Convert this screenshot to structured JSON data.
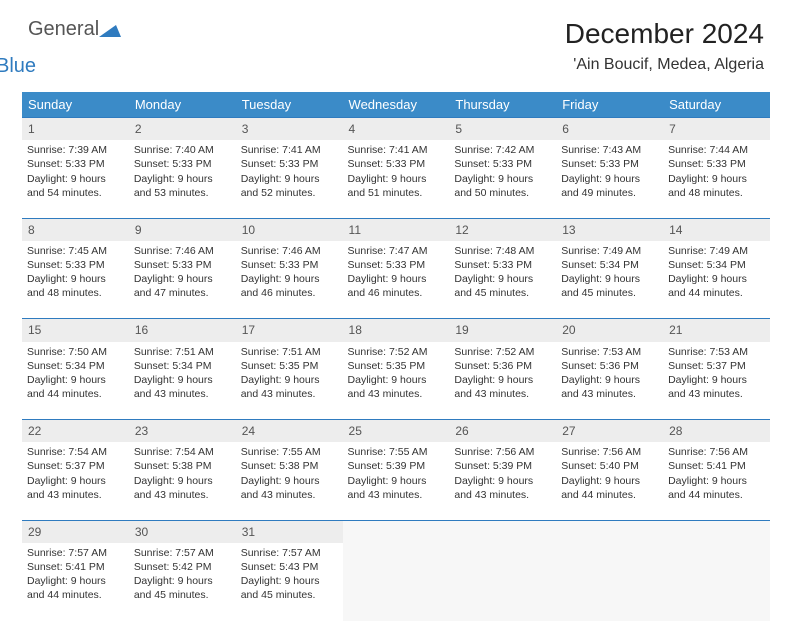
{
  "brand": {
    "part1": "General",
    "part2": "Blue"
  },
  "title": "December 2024",
  "location": "'Ain Boucif, Medea, Algeria",
  "colors": {
    "header_bg": "#3b8bc8",
    "header_text": "#ffffff",
    "daynum_bg": "#ededed",
    "daynum_border": "#2f7bbf",
    "text": "#333333",
    "brand_blue": "#2f7bbf",
    "background": "#ffffff"
  },
  "fonts": {
    "title_size": 28,
    "location_size": 16,
    "header_size": 13,
    "cell_size": 10.5
  },
  "weekdays": [
    "Sunday",
    "Monday",
    "Tuesday",
    "Wednesday",
    "Thursday",
    "Friday",
    "Saturday"
  ],
  "weeks": [
    {
      "nums": [
        "1",
        "2",
        "3",
        "4",
        "5",
        "6",
        "7"
      ],
      "cells": [
        {
          "sunrise": "Sunrise: 7:39 AM",
          "sunset": "Sunset: 5:33 PM",
          "daylight": "Daylight: 9 hours and 54 minutes."
        },
        {
          "sunrise": "Sunrise: 7:40 AM",
          "sunset": "Sunset: 5:33 PM",
          "daylight": "Daylight: 9 hours and 53 minutes."
        },
        {
          "sunrise": "Sunrise: 7:41 AM",
          "sunset": "Sunset: 5:33 PM",
          "daylight": "Daylight: 9 hours and 52 minutes."
        },
        {
          "sunrise": "Sunrise: 7:41 AM",
          "sunset": "Sunset: 5:33 PM",
          "daylight": "Daylight: 9 hours and 51 minutes."
        },
        {
          "sunrise": "Sunrise: 7:42 AM",
          "sunset": "Sunset: 5:33 PM",
          "daylight": "Daylight: 9 hours and 50 minutes."
        },
        {
          "sunrise": "Sunrise: 7:43 AM",
          "sunset": "Sunset: 5:33 PM",
          "daylight": "Daylight: 9 hours and 49 minutes."
        },
        {
          "sunrise": "Sunrise: 7:44 AM",
          "sunset": "Sunset: 5:33 PM",
          "daylight": "Daylight: 9 hours and 48 minutes."
        }
      ]
    },
    {
      "nums": [
        "8",
        "9",
        "10",
        "11",
        "12",
        "13",
        "14"
      ],
      "cells": [
        {
          "sunrise": "Sunrise: 7:45 AM",
          "sunset": "Sunset: 5:33 PM",
          "daylight": "Daylight: 9 hours and 48 minutes."
        },
        {
          "sunrise": "Sunrise: 7:46 AM",
          "sunset": "Sunset: 5:33 PM",
          "daylight": "Daylight: 9 hours and 47 minutes."
        },
        {
          "sunrise": "Sunrise: 7:46 AM",
          "sunset": "Sunset: 5:33 PM",
          "daylight": "Daylight: 9 hours and 46 minutes."
        },
        {
          "sunrise": "Sunrise: 7:47 AM",
          "sunset": "Sunset: 5:33 PM",
          "daylight": "Daylight: 9 hours and 46 minutes."
        },
        {
          "sunrise": "Sunrise: 7:48 AM",
          "sunset": "Sunset: 5:33 PM",
          "daylight": "Daylight: 9 hours and 45 minutes."
        },
        {
          "sunrise": "Sunrise: 7:49 AM",
          "sunset": "Sunset: 5:34 PM",
          "daylight": "Daylight: 9 hours and 45 minutes."
        },
        {
          "sunrise": "Sunrise: 7:49 AM",
          "sunset": "Sunset: 5:34 PM",
          "daylight": "Daylight: 9 hours and 44 minutes."
        }
      ]
    },
    {
      "nums": [
        "15",
        "16",
        "17",
        "18",
        "19",
        "20",
        "21"
      ],
      "cells": [
        {
          "sunrise": "Sunrise: 7:50 AM",
          "sunset": "Sunset: 5:34 PM",
          "daylight": "Daylight: 9 hours and 44 minutes."
        },
        {
          "sunrise": "Sunrise: 7:51 AM",
          "sunset": "Sunset: 5:34 PM",
          "daylight": "Daylight: 9 hours and 43 minutes."
        },
        {
          "sunrise": "Sunrise: 7:51 AM",
          "sunset": "Sunset: 5:35 PM",
          "daylight": "Daylight: 9 hours and 43 minutes."
        },
        {
          "sunrise": "Sunrise: 7:52 AM",
          "sunset": "Sunset: 5:35 PM",
          "daylight": "Daylight: 9 hours and 43 minutes."
        },
        {
          "sunrise": "Sunrise: 7:52 AM",
          "sunset": "Sunset: 5:36 PM",
          "daylight": "Daylight: 9 hours and 43 minutes."
        },
        {
          "sunrise": "Sunrise: 7:53 AM",
          "sunset": "Sunset: 5:36 PM",
          "daylight": "Daylight: 9 hours and 43 minutes."
        },
        {
          "sunrise": "Sunrise: 7:53 AM",
          "sunset": "Sunset: 5:37 PM",
          "daylight": "Daylight: 9 hours and 43 minutes."
        }
      ]
    },
    {
      "nums": [
        "22",
        "23",
        "24",
        "25",
        "26",
        "27",
        "28"
      ],
      "cells": [
        {
          "sunrise": "Sunrise: 7:54 AM",
          "sunset": "Sunset: 5:37 PM",
          "daylight": "Daylight: 9 hours and 43 minutes."
        },
        {
          "sunrise": "Sunrise: 7:54 AM",
          "sunset": "Sunset: 5:38 PM",
          "daylight": "Daylight: 9 hours and 43 minutes."
        },
        {
          "sunrise": "Sunrise: 7:55 AM",
          "sunset": "Sunset: 5:38 PM",
          "daylight": "Daylight: 9 hours and 43 minutes."
        },
        {
          "sunrise": "Sunrise: 7:55 AM",
          "sunset": "Sunset: 5:39 PM",
          "daylight": "Daylight: 9 hours and 43 minutes."
        },
        {
          "sunrise": "Sunrise: 7:56 AM",
          "sunset": "Sunset: 5:39 PM",
          "daylight": "Daylight: 9 hours and 43 minutes."
        },
        {
          "sunrise": "Sunrise: 7:56 AM",
          "sunset": "Sunset: 5:40 PM",
          "daylight": "Daylight: 9 hours and 44 minutes."
        },
        {
          "sunrise": "Sunrise: 7:56 AM",
          "sunset": "Sunset: 5:41 PM",
          "daylight": "Daylight: 9 hours and 44 minutes."
        }
      ]
    },
    {
      "nums": [
        "29",
        "30",
        "31",
        "",
        "",
        "",
        ""
      ],
      "cells": [
        {
          "sunrise": "Sunrise: 7:57 AM",
          "sunset": "Sunset: 5:41 PM",
          "daylight": "Daylight: 9 hours and 44 minutes."
        },
        {
          "sunrise": "Sunrise: 7:57 AM",
          "sunset": "Sunset: 5:42 PM",
          "daylight": "Daylight: 9 hours and 45 minutes."
        },
        {
          "sunrise": "Sunrise: 7:57 AM",
          "sunset": "Sunset: 5:43 PM",
          "daylight": "Daylight: 9 hours and 45 minutes."
        },
        null,
        null,
        null,
        null
      ]
    }
  ]
}
